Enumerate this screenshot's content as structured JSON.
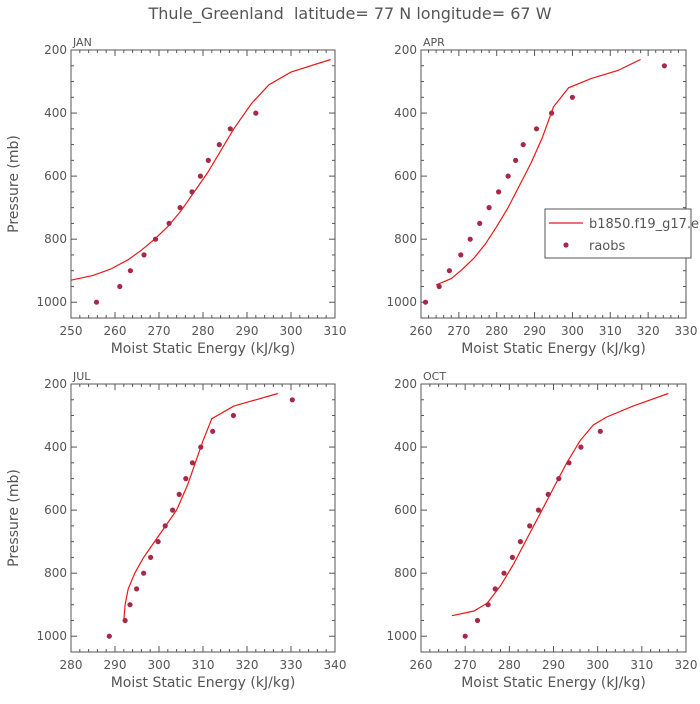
{
  "figure": {
    "title": "Thule_Greenland  latitude= 77 N longitude= 67 W",
    "y_label": "Pressure (mb)",
    "x_label": "Moist Static Energy (kJ/kg)"
  },
  "legend": {
    "model_label": "b1850.f19_g17.e",
    "obs_label": "raobs"
  },
  "colors": {
    "model": "#e81818",
    "obs": "#a8284a",
    "axis": "#555555"
  },
  "chart_data": [
    {
      "type": "line",
      "month": "JAN",
      "xlim": [
        250,
        310
      ],
      "xticks": [
        250,
        260,
        270,
        280,
        290,
        300,
        310
      ],
      "ylim": [
        1050,
        200
      ],
      "yticks": [
        200,
        400,
        600,
        800,
        1000
      ],
      "series": [
        {
          "kind": "line",
          "x": [
            250,
            255,
            259,
            263,
            266,
            269,
            272,
            275,
            278,
            281,
            284,
            287,
            291,
            295,
            300,
            309
          ],
          "y": [
            930,
            915,
            895,
            865,
            835,
            800,
            760,
            710,
            650,
            590,
            520,
            450,
            370,
            310,
            270,
            230
          ]
        },
        {
          "kind": "scatter",
          "x": [
            255.8,
            261.1,
            263.5,
            266.6,
            269.2,
            272.3,
            274.8,
            277.5,
            279.4,
            281.2,
            283.7,
            286.2,
            292.0
          ],
          "y": [
            1000,
            950,
            900,
            850,
            800,
            750,
            700,
            650,
            600,
            550,
            500,
            450,
            400
          ]
        }
      ]
    },
    {
      "type": "line",
      "month": "APR",
      "xlim": [
        260,
        330
      ],
      "xticks": [
        260,
        270,
        280,
        290,
        300,
        310,
        320,
        330
      ],
      "ylim": [
        1050,
        200
      ],
      "yticks": [
        200,
        400,
        600,
        800,
        1000
      ],
      "series": [
        {
          "kind": "line",
          "x": [
            264,
            268,
            271,
            274,
            277,
            280,
            283,
            286,
            289,
            292,
            295,
            299,
            305,
            312,
            318
          ],
          "y": [
            945,
            925,
            895,
            860,
            815,
            760,
            700,
            630,
            560,
            480,
            380,
            320,
            290,
            265,
            230
          ]
        },
        {
          "kind": "scatter",
          "x": [
            261.2,
            264.8,
            267.5,
            270.5,
            273.0,
            275.5,
            278.0,
            280.5,
            283.0,
            285.0,
            287.0,
            290.5,
            294.5,
            300.0,
            324.3
          ],
          "y": [
            1000,
            950,
            900,
            850,
            800,
            750,
            700,
            650,
            600,
            550,
            500,
            450,
            400,
            350,
            250
          ]
        }
      ]
    },
    {
      "type": "line",
      "month": "JUL",
      "xlim": [
        280,
        340
      ],
      "xticks": [
        280,
        290,
        300,
        310,
        320,
        330,
        340
      ],
      "ylim": [
        1050,
        200
      ],
      "yticks": [
        200,
        400,
        600,
        800,
        1000
      ],
      "series": [
        {
          "kind": "line",
          "x": [
            292,
            292.3,
            293,
            294.5,
            296.5,
            299,
            301.5,
            304,
            306.5,
            308.5,
            310,
            312,
            317,
            327
          ],
          "y": [
            950,
            900,
            850,
            800,
            750,
            700,
            650,
            600,
            520,
            440,
            380,
            310,
            270,
            230
          ]
        },
        {
          "kind": "scatter",
          "x": [
            288.7,
            292.3,
            293.4,
            294.9,
            296.5,
            298.1,
            299.8,
            301.4,
            303.1,
            304.6,
            306.1,
            307.6,
            309.5,
            312.2,
            316.9,
            330.3
          ],
          "y": [
            1000,
            950,
            900,
            850,
            800,
            750,
            700,
            650,
            600,
            550,
            500,
            450,
            400,
            350,
            300,
            250
          ]
        }
      ]
    },
    {
      "type": "line",
      "month": "OCT",
      "xlim": [
        260,
        320
      ],
      "xticks": [
        260,
        270,
        280,
        290,
        300,
        310,
        320
      ],
      "ylim": [
        1050,
        200
      ],
      "yticks": [
        200,
        400,
        600,
        800,
        1000
      ],
      "series": [
        {
          "kind": "line",
          "x": [
            267,
            272,
            275,
            278,
            281,
            284,
            287,
            290,
            293,
            296,
            299,
            302,
            308,
            316
          ],
          "y": [
            935,
            920,
            895,
            840,
            770,
            690,
            610,
            530,
            450,
            380,
            330,
            305,
            270,
            230
          ]
        },
        {
          "kind": "scatter",
          "x": [
            270.0,
            272.8,
            275.2,
            276.8,
            278.8,
            280.7,
            282.5,
            284.6,
            286.6,
            288.8,
            291.2,
            293.5,
            296.2,
            300.6
          ],
          "y": [
            1000,
            950,
            900,
            850,
            800,
            750,
            700,
            650,
            600,
            550,
            500,
            450,
            400,
            350
          ]
        }
      ]
    }
  ]
}
